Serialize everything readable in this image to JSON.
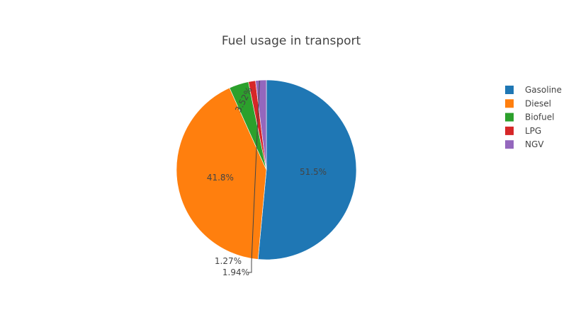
{
  "chart_data": {
    "type": "pie",
    "title": "Fuel usage in transport",
    "labels": [
      "Gasoline",
      "Diesel",
      "Biofuel",
      "LPG",
      "NGV"
    ],
    "values": [
      51.5,
      41.8,
      3.52,
      1.27,
      1.94
    ],
    "percent_labels": [
      "51.5%",
      "41.8%",
      "3.52%",
      "1.27%",
      "1.94%"
    ],
    "colors": [
      "#1f77b4",
      "#ff7f0e",
      "#2ca02c",
      "#d62728",
      "#9467bd"
    ],
    "direction": "clockwise",
    "start_angle": "top",
    "legend_position": "right"
  }
}
